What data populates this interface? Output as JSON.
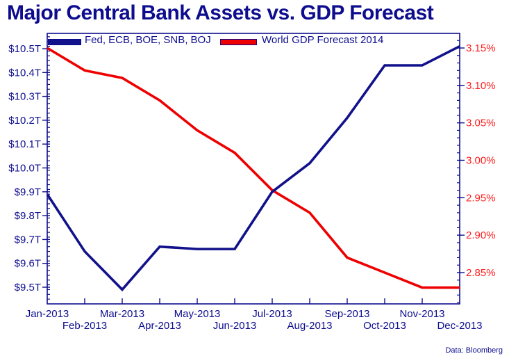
{
  "title": "Major Central Bank Assets vs. GDP Forecast",
  "footer": "Data: Bloomberg",
  "colors": {
    "navy": "#0d0d8e",
    "series_assets": "#11118b",
    "series_gdp": "#ee0000",
    "right_axis_label": "#ff2020",
    "background": "#ffffff"
  },
  "chart_data": {
    "type": "line",
    "title": "Major Central Bank Assets vs. GDP Forecast",
    "categories": [
      "Jan-2013",
      "Feb-2013",
      "Mar-2013",
      "Apr-2013",
      "May-2013",
      "Jun-2013",
      "Jul-2013",
      "Aug-2013",
      "Sep-2013",
      "Oct-2013",
      "Nov-2013",
      "Dec-2013"
    ],
    "series": [
      {
        "name": "Fed, ECB, BOE, SNB, BOJ",
        "axis": "left",
        "color": "#11118b",
        "unit": "trillion USD",
        "values": [
          9.89,
          9.65,
          9.49,
          9.67,
          9.66,
          9.66,
          9.9,
          10.02,
          10.21,
          10.43,
          10.43,
          10.51
        ]
      },
      {
        "name": "World GDP Forecast 2014",
        "axis": "right",
        "color": "#ee0000",
        "unit": "percent",
        "values": [
          3.15,
          3.12,
          3.11,
          3.08,
          3.04,
          3.01,
          2.96,
          2.93,
          2.87,
          2.85,
          2.83,
          2.83
        ]
      }
    ],
    "left_axis": {
      "tick_labels": [
        "$10.5T",
        "$10.4T",
        "$10.3T",
        "$10.2T",
        "$10.1T",
        "$10.0T",
        "$9.9T",
        "$9.8T",
        "$9.7T",
        "$9.6T",
        "$9.5T"
      ],
      "tick_values": [
        10.5,
        10.4,
        10.3,
        10.2,
        10.1,
        10.0,
        9.9,
        9.8,
        9.7,
        9.6,
        9.5
      ],
      "minor_step": 0.02,
      "ylim": [
        9.43,
        10.56
      ]
    },
    "right_axis": {
      "tick_labels": [
        "3.15%",
        "3.10%",
        "3.05%",
        "3.00%",
        "2.95%",
        "2.90%",
        "2.85%"
      ],
      "tick_values": [
        3.15,
        3.1,
        3.05,
        3.0,
        2.95,
        2.9,
        2.85
      ],
      "minor_step": 0.01,
      "ylim": [
        2.81,
        3.17
      ]
    },
    "legend_position": "top-left-inside",
    "grid": "off",
    "x_label_stagger": true
  }
}
